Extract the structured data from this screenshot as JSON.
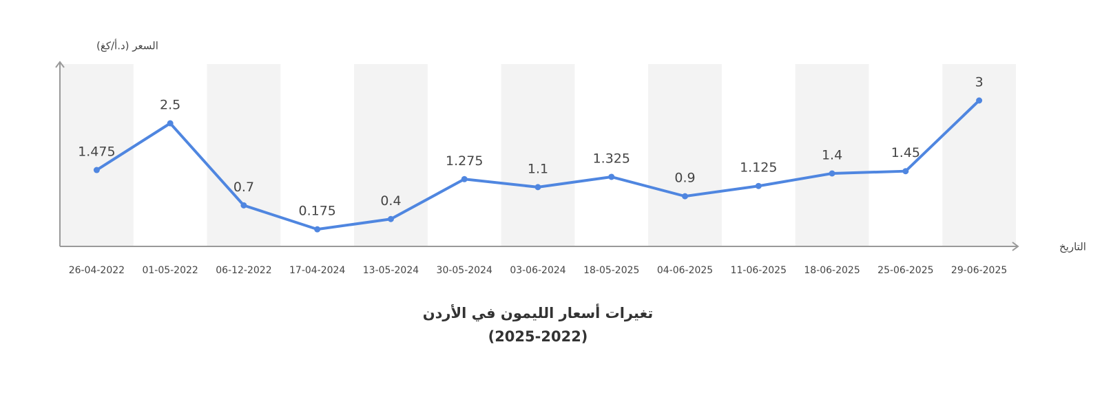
{
  "chart_data": {
    "type": "line",
    "title": "تغيرات أسعار الليمون في الأردن",
    "subtitle": "(2025-2022)",
    "y_label": "السعر (د.أ/كغ)",
    "x_label": "التاريخ",
    "categories": [
      "26-04-2022",
      "01-05-2022",
      "06-12-2022",
      "17-04-2024",
      "13-05-2024",
      "30-05-2024",
      "03-06-2024",
      "18-05-2025",
      "04-06-2025",
      "11-06-2025",
      "18-06-2025",
      "25-06-2025",
      "29-06-2025"
    ],
    "values": [
      1.475,
      2.5,
      0.7,
      0.175,
      0.4,
      1.275,
      1.1,
      1.325,
      0.9,
      1.125,
      1.4,
      1.45,
      3
    ],
    "color": "#4f86e0",
    "ylim": [
      -0.2,
      3.8
    ]
  }
}
